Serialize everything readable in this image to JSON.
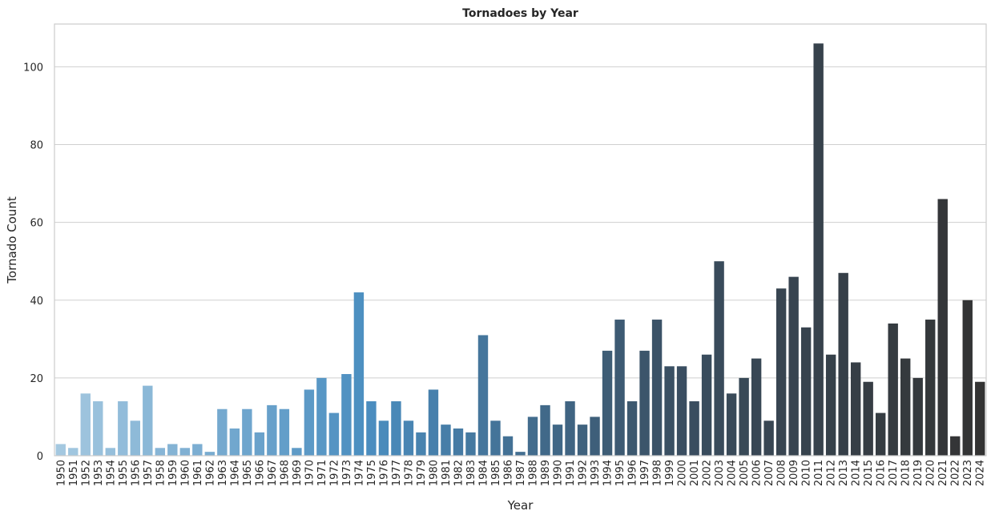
{
  "chart_data": {
    "type": "bar",
    "title": "Tornadoes by Year",
    "xlabel": "Year",
    "ylabel": "Tornado Count",
    "ylim": [
      0,
      111
    ],
    "yticks": [
      0,
      20,
      40,
      60,
      80,
      100
    ],
    "grid": "horizontal",
    "colormap": [
      "#a4c8e0",
      "#4b8ec0",
      "#3a4f62",
      "#333333"
    ],
    "categories": [
      "1950",
      "1951",
      "1952",
      "1953",
      "1954",
      "1955",
      "1956",
      "1957",
      "1958",
      "1959",
      "1960",
      "1961",
      "1962",
      "1963",
      "1964",
      "1965",
      "1966",
      "1967",
      "1968",
      "1969",
      "1970",
      "1971",
      "1972",
      "1973",
      "1974",
      "1975",
      "1976",
      "1977",
      "1978",
      "1979",
      "1980",
      "1981",
      "1982",
      "1983",
      "1984",
      "1985",
      "1986",
      "1987",
      "1988",
      "1989",
      "1990",
      "1991",
      "1992",
      "1993",
      "1994",
      "1995",
      "1996",
      "1997",
      "1998",
      "1999",
      "2000",
      "2001",
      "2002",
      "2003",
      "2004",
      "2005",
      "2006",
      "2007",
      "2008",
      "2009",
      "2010",
      "2011",
      "2012",
      "2013",
      "2014",
      "2015",
      "2016",
      "2017",
      "2018",
      "2019",
      "2020",
      "2021",
      "2022",
      "2023",
      "2024"
    ],
    "values": [
      3,
      2,
      16,
      14,
      2,
      14,
      9,
      18,
      2,
      3,
      2,
      3,
      1,
      12,
      7,
      12,
      6,
      13,
      12,
      2,
      17,
      20,
      11,
      21,
      42,
      14,
      9,
      14,
      9,
      6,
      17,
      8,
      7,
      6,
      31,
      9,
      5,
      1,
      10,
      13,
      8,
      14,
      8,
      10,
      27,
      35,
      14,
      27,
      35,
      23,
      23,
      14,
      26,
      50,
      16,
      20,
      25,
      9,
      43,
      46,
      33,
      106,
      26,
      47,
      24,
      19,
      11,
      34,
      25,
      20,
      35,
      66,
      5,
      40,
      19
    ]
  }
}
